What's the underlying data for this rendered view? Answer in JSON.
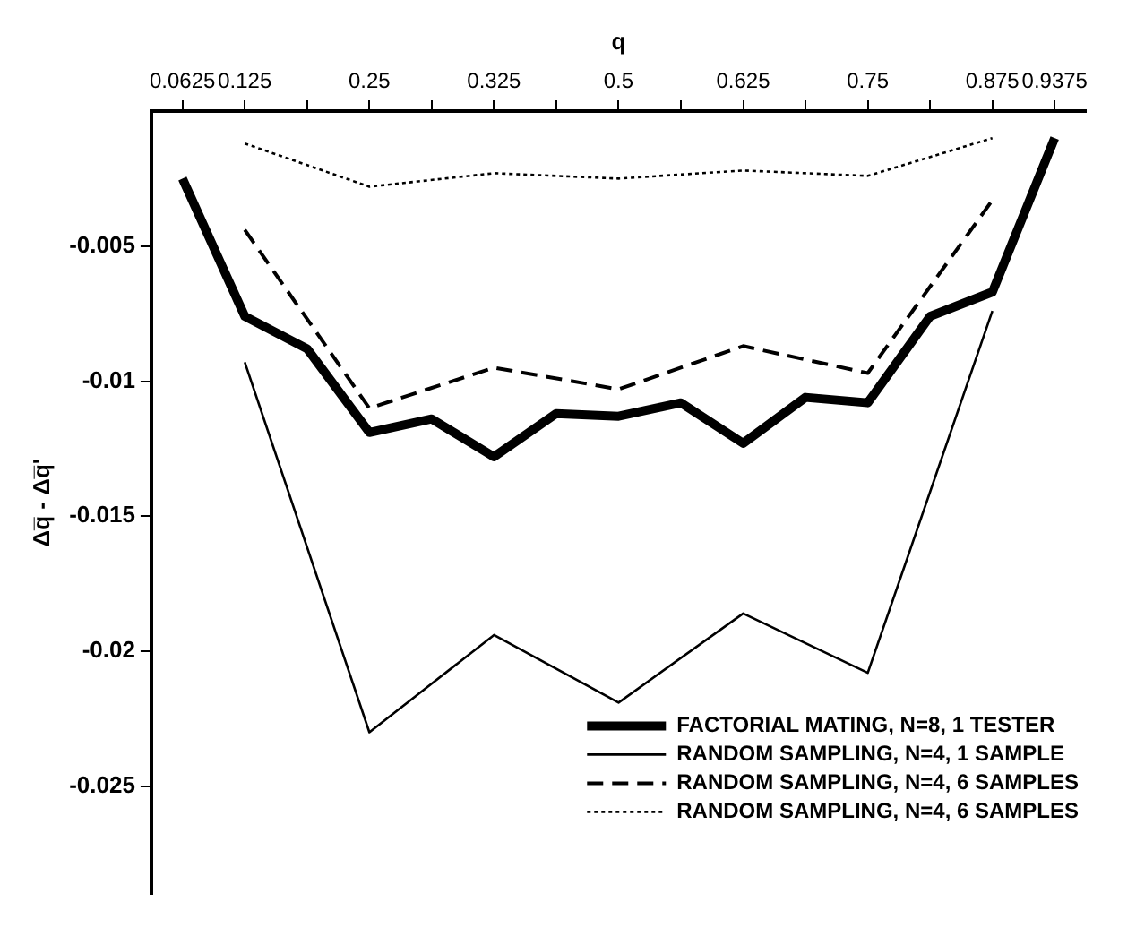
{
  "chart_data": {
    "type": "line",
    "xlabel": "q",
    "ylabel": "Δq̅ - Δq̅'",
    "categories": [
      "0.0625",
      "0.125",
      null,
      "0.25",
      null,
      "0.325",
      null,
      "0.5",
      null,
      "0.625",
      null,
      "0.75",
      null,
      "0.875",
      "0.9375"
    ],
    "series": [
      {
        "name": "FACTORIAL MATING, N=8, 1 TESTER",
        "color": "#000000",
        "line_style": "solid",
        "values": [
          -0.0025,
          -0.0076,
          -0.0088,
          -0.0119,
          -0.0114,
          -0.0128,
          -0.0112,
          -0.0113,
          -0.0108,
          -0.0123,
          -0.0106,
          -0.0108,
          -0.0076,
          -0.0067,
          -0.001
        ]
      },
      {
        "name": "RANDOM SAMPLING, N=4, 1 SAMPLE",
        "color": "#000000",
        "line_style": "solid",
        "values": [
          null,
          -0.0093,
          null,
          -0.023,
          null,
          -0.0194,
          null,
          -0.0219,
          null,
          -0.0186,
          null,
          -0.0208,
          null,
          -0.0074,
          null
        ]
      },
      {
        "name": "RANDOM SAMPLING, N=4, 6 SAMPLES",
        "color": "#000000",
        "line_style": "dashed",
        "values": [
          null,
          -0.0044,
          null,
          -0.011,
          null,
          -0.0095,
          null,
          -0.0103,
          null,
          -0.0087,
          null,
          -0.0097,
          null,
          -0.0033,
          null
        ]
      },
      {
        "name": "RANDOM SAMPLING, N=4, 6 SAMPLES",
        "color": "#000000",
        "line_style": "dotted",
        "values": [
          null,
          -0.0012,
          null,
          -0.0028,
          null,
          -0.0023,
          null,
          -0.0025,
          null,
          -0.0022,
          null,
          -0.0024,
          null,
          -0.001,
          null
        ]
      }
    ],
    "ylim": [
      -0.029,
      0
    ],
    "yticks": [
      -0.005,
      -0.01,
      -0.015,
      -0.02,
      -0.025
    ],
    "grid": false,
    "legend": "bottom right",
    "marker": "none"
  }
}
